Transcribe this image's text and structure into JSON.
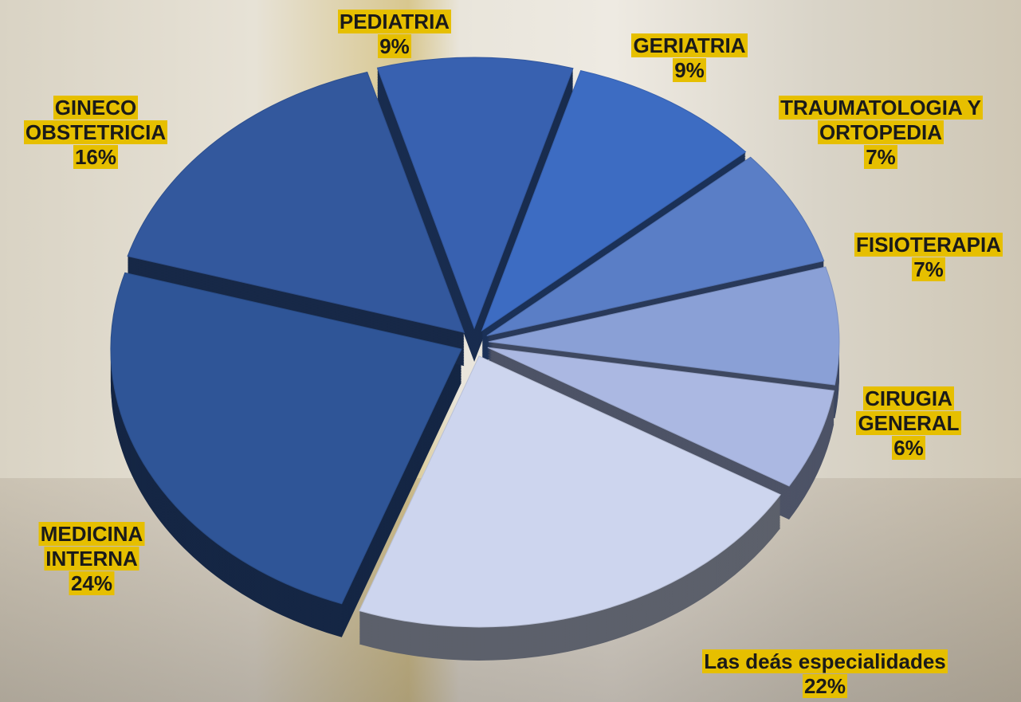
{
  "chart_data": {
    "type": "pie",
    "categories": [
      "PEDIATRIA",
      "GERIATRIA",
      "TRAUMATOLOGIA Y ORTOPEDIA",
      "FISIOTERAPIA",
      "CIRUGIA GENERAL",
      "Las deás especialidades",
      "MEDICINA INTERNA",
      "GINECO OBSTETRICIA"
    ],
    "values": [
      9,
      9,
      7,
      7,
      6,
      22,
      24,
      16
    ],
    "value_labels": [
      "9%",
      "9%",
      "7%",
      "7%",
      "6%",
      "22%",
      "24%",
      "16%"
    ],
    "colors": [
      "#3861b0",
      "#3d6cc2",
      "#5a7ec6",
      "#8aa0d6",
      "#abb8e2",
      "#cdd5ee",
      "#2f5597",
      "#33589d"
    ]
  }
}
